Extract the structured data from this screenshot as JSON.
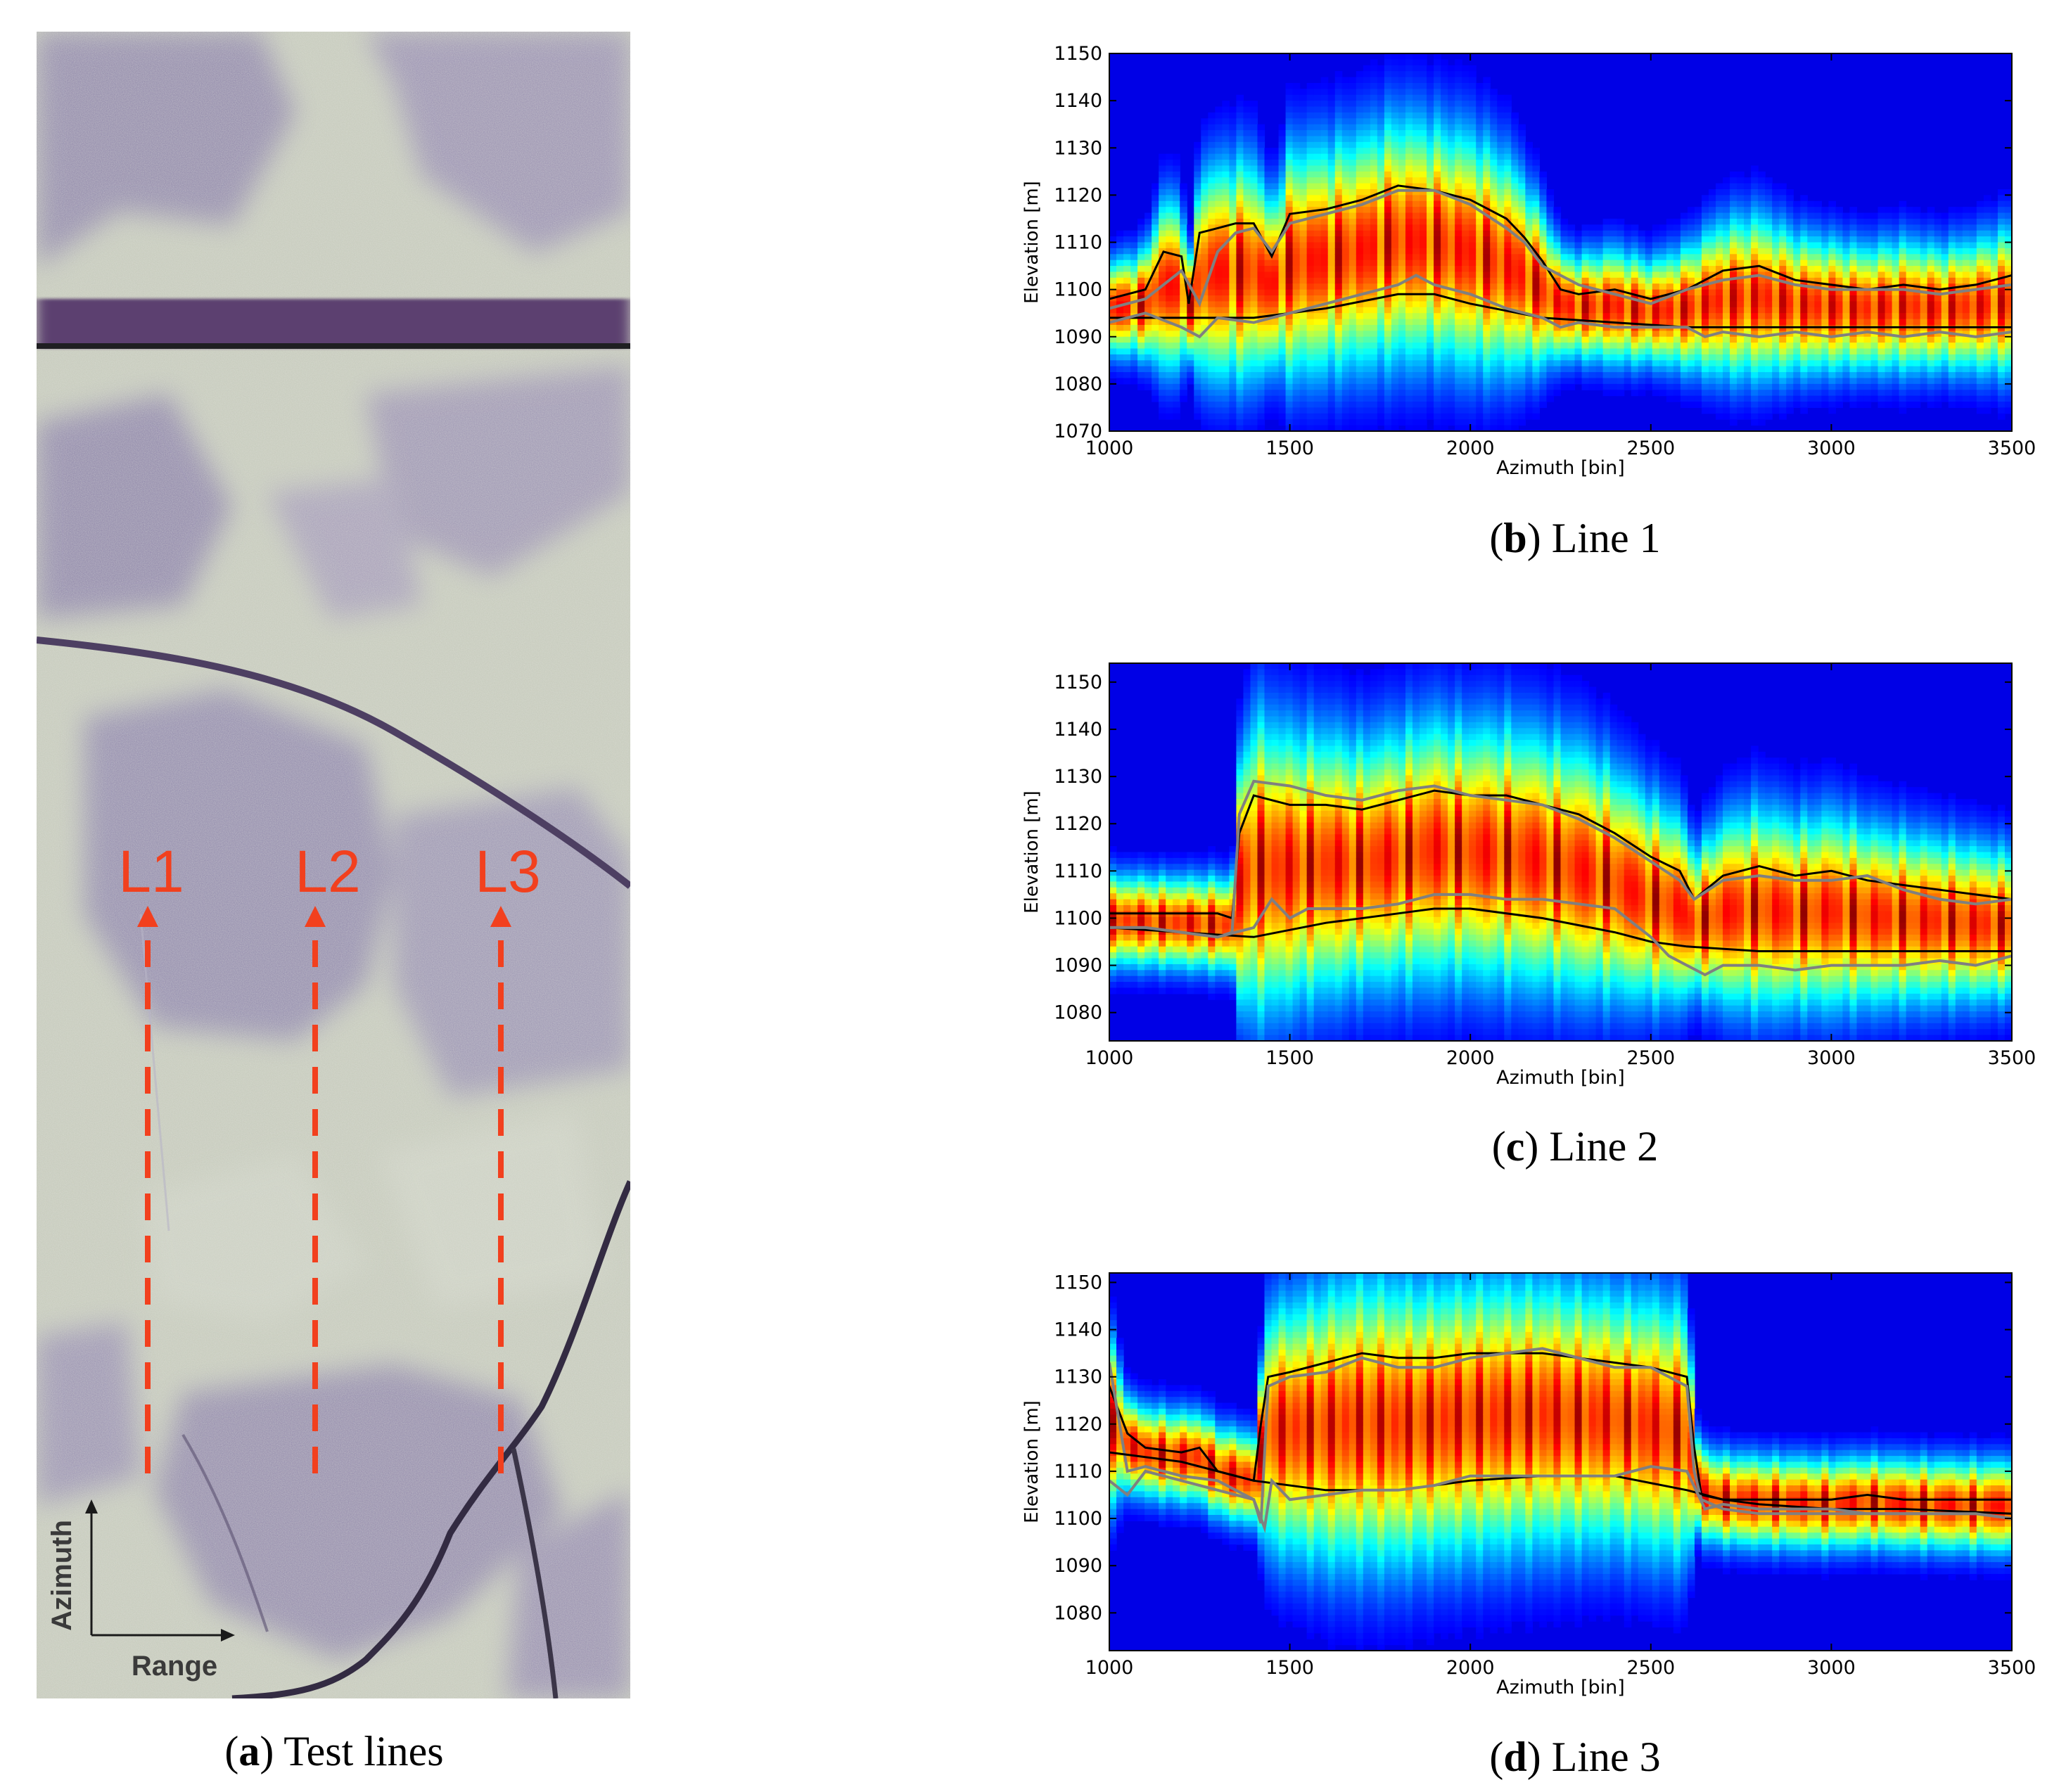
{
  "figure": {
    "panel_a": {
      "caption_letter": "a",
      "caption_text": "Test lines",
      "line_labels": [
        "L1",
        "L2",
        "L3"
      ],
      "compass": {
        "azimuth_label": "Azimuth",
        "range_label": "Range"
      },
      "colors": {
        "line": "#f2401e",
        "compass": "#1a1a1a"
      }
    },
    "panels": [
      {
        "caption_letter": "b",
        "caption_text": "Line 1"
      },
      {
        "caption_letter": "c",
        "caption_text": "Line 2"
      },
      {
        "caption_letter": "d",
        "caption_text": "Line 3"
      }
    ]
  },
  "chart_data": [
    {
      "type": "heatmap",
      "title": "",
      "xlabel": "Azimuth [bin]",
      "ylabel": "Elevation [m]",
      "xlim": [
        1000,
        3500
      ],
      "ylim": [
        1070,
        1150
      ],
      "xticks": [
        1000,
        1500,
        2000,
        2500,
        3000,
        3500
      ],
      "yticks": [
        1070,
        1080,
        1090,
        1100,
        1110,
        1120,
        1130,
        1140,
        1150
      ],
      "grid": false,
      "colormap": "jet",
      "series": [
        {
          "color": "#000000",
          "x": [
            1000,
            1100,
            1150,
            1200,
            1220,
            1250,
            1300,
            1350,
            1400,
            1450,
            1500,
            1600,
            1700,
            1800,
            1900,
            2000,
            2100,
            2150,
            2200,
            2250,
            2300,
            2400,
            2500,
            2600,
            2700,
            2800,
            2900,
            3000,
            3100,
            3200,
            3300,
            3400,
            3500
          ],
          "y": [
            1098,
            1100,
            1108,
            1107,
            1097,
            1112,
            1113,
            1114,
            1114,
            1107,
            1116,
            1117,
            1119,
            1122,
            1121,
            1119,
            1115,
            1111,
            1106,
            1100,
            1099,
            1100,
            1098,
            1100,
            1104,
            1105,
            1102,
            1101,
            1100,
            1101,
            1100,
            1101,
            1103
          ]
        },
        {
          "color": "#808080",
          "x": [
            1000,
            1100,
            1200,
            1250,
            1300,
            1350,
            1400,
            1450,
            1500,
            1600,
            1700,
            1800,
            1900,
            2000,
            2100,
            2150,
            2200,
            2250,
            2300,
            2400,
            2500,
            2600,
            2700,
            2800,
            2900,
            3000,
            3100,
            3200,
            3300,
            3400,
            3500
          ],
          "y": [
            1096,
            1098,
            1104,
            1097,
            1108,
            1112,
            1113,
            1108,
            1114,
            1116,
            1118,
            1121,
            1121,
            1118,
            1113,
            1110,
            1105,
            1103,
            1101,
            1099,
            1097,
            1100,
            1102,
            1103,
            1101,
            1100,
            1100,
            1100,
            1099,
            1100,
            1101
          ]
        },
        {
          "color": "#000000",
          "x": [
            1000,
            1200,
            1400,
            1600,
            1800,
            1900,
            2000,
            2200,
            2400,
            2600,
            2800,
            3000,
            3200,
            3500
          ],
          "y": [
            1094,
            1094,
            1094,
            1096,
            1099,
            1099,
            1097,
            1094,
            1093,
            1092,
            1092,
            1092,
            1092,
            1092
          ]
        },
        {
          "color": "#808080",
          "x": [
            1000,
            1100,
            1200,
            1250,
            1300,
            1400,
            1500,
            1600,
            1700,
            1800,
            1850,
            1900,
            1950,
            2000,
            2100,
            2200,
            2250,
            2300,
            2400,
            2500,
            2600,
            2650,
            2700,
            2800,
            2900,
            3000,
            3100,
            3200,
            3300,
            3400,
            3500
          ],
          "y": [
            1093,
            1095,
            1092,
            1090,
            1094,
            1093,
            1095,
            1097,
            1099,
            1101,
            1103,
            1101,
            1100,
            1099,
            1096,
            1094,
            1092,
            1093,
            1092,
            1092,
            1092,
            1090,
            1091,
            1090,
            1091,
            1090,
            1091,
            1090,
            1091,
            1090,
            1091
          ]
        }
      ]
    },
    {
      "type": "heatmap",
      "title": "",
      "xlabel": "Azimuth [bin]",
      "ylabel": "Elevation [m]",
      "xlim": [
        1000,
        3500
      ],
      "ylim": [
        1074,
        1154
      ],
      "xticks": [
        1000,
        1500,
        2000,
        2500,
        3000,
        3500
      ],
      "yticks": [
        1080,
        1090,
        1100,
        1110,
        1120,
        1130,
        1140,
        1150
      ],
      "grid": false,
      "colormap": "jet",
      "series": [
        {
          "color": "#000000",
          "x": [
            1000,
            1100,
            1200,
            1300,
            1340,
            1360,
            1400,
            1500,
            1600,
            1700,
            1800,
            1900,
            2000,
            2100,
            2200,
            2300,
            2400,
            2500,
            2580,
            2620,
            2700,
            2800,
            2900,
            3000,
            3100,
            3200,
            3300,
            3400,
            3500
          ],
          "y": [
            1101,
            1101,
            1101,
            1101,
            1100,
            1118,
            1126,
            1124,
            1124,
            1123,
            1125,
            1127,
            1126,
            1126,
            1124,
            1122,
            1118,
            1113,
            1110,
            1104,
            1109,
            1111,
            1109,
            1110,
            1108,
            1107,
            1106,
            1105,
            1104
          ]
        },
        {
          "color": "#808080",
          "x": [
            1000,
            1100,
            1200,
            1300,
            1340,
            1360,
            1400,
            1500,
            1600,
            1700,
            1800,
            1900,
            2000,
            2100,
            2200,
            2300,
            2400,
            2500,
            2580,
            2620,
            2700,
            2800,
            2900,
            3000,
            3100,
            3200,
            3300,
            3400,
            3500
          ],
          "y": [
            1098,
            1098,
            1097,
            1096,
            1097,
            1122,
            1129,
            1128,
            1126,
            1125,
            1127,
            1128,
            1126,
            1125,
            1124,
            1121,
            1117,
            1112,
            1108,
            1104,
            1108,
            1109,
            1108,
            1108,
            1109,
            1106,
            1104,
            1103,
            1104
          ]
        },
        {
          "color": "#000000",
          "x": [
            1000,
            1200,
            1400,
            1600,
            1800,
            1900,
            2000,
            2200,
            2400,
            2500,
            2600,
            2800,
            3000,
            3200,
            3500
          ],
          "y": [
            1098,
            1097,
            1096,
            1099,
            1101,
            1102,
            1102,
            1100,
            1097,
            1095,
            1094,
            1093,
            1093,
            1093,
            1093
          ]
        },
        {
          "color": "#808080",
          "x": [
            1000,
            1100,
            1200,
            1300,
            1400,
            1450,
            1500,
            1550,
            1600,
            1700,
            1800,
            1900,
            2000,
            2100,
            2200,
            2300,
            2400,
            2500,
            2550,
            2600,
            2650,
            2700,
            2800,
            2900,
            3000,
            3100,
            3200,
            3300,
            3400,
            3500
          ],
          "y": [
            1098,
            1098,
            1097,
            1096,
            1098,
            1104,
            1100,
            1102,
            1102,
            1102,
            1103,
            1105,
            1105,
            1104,
            1104,
            1103,
            1102,
            1096,
            1092,
            1090,
            1088,
            1090,
            1090,
            1089,
            1090,
            1090,
            1090,
            1091,
            1090,
            1092
          ]
        }
      ]
    },
    {
      "type": "heatmap",
      "title": "",
      "xlabel": "Azimuth [bin]",
      "ylabel": "Elevation [m]",
      "xlim": [
        1000,
        3500
      ],
      "ylim": [
        1072,
        1152
      ],
      "xticks": [
        1000,
        1500,
        2000,
        2500,
        3000,
        3500
      ],
      "yticks": [
        1080,
        1090,
        1100,
        1110,
        1120,
        1130,
        1140,
        1150
      ],
      "grid": false,
      "colormap": "jet",
      "series": [
        {
          "color": "#000000",
          "x": [
            1000,
            1050,
            1100,
            1200,
            1250,
            1300,
            1400,
            1420,
            1440,
            1500,
            1600,
            1700,
            1800,
            1900,
            2000,
            2100,
            2200,
            2300,
            2400,
            2500,
            2600,
            2620,
            2640,
            2700,
            2800,
            2900,
            3000,
            3100,
            3200,
            3300,
            3400,
            3500
          ],
          "y": [
            1128,
            1118,
            1115,
            1114,
            1115,
            1110,
            1108,
            1120,
            1130,
            1131,
            1133,
            1135,
            1134,
            1134,
            1135,
            1135,
            1135,
            1134,
            1133,
            1132,
            1130,
            1115,
            1105,
            1104,
            1104,
            1104,
            1104,
            1105,
            1104,
            1104,
            1104,
            1104
          ]
        },
        {
          "color": "#808080",
          "x": [
            1000,
            1050,
            1100,
            1200,
            1300,
            1400,
            1420,
            1440,
            1500,
            1600,
            1700,
            1800,
            1900,
            2000,
            2100,
            2200,
            2300,
            2400,
            2500,
            2600,
            2620,
            2640,
            2700,
            2800,
            2900,
            3000,
            3100,
            3200,
            3300,
            3400,
            3500
          ],
          "y": [
            1133,
            1110,
            1111,
            1109,
            1108,
            1104,
            1099,
            1128,
            1130,
            1131,
            1134,
            1132,
            1132,
            1134,
            1135,
            1136,
            1134,
            1132,
            1132,
            1128,
            1110,
            1104,
            1102,
            1101,
            1101,
            1101,
            1101,
            1101,
            1101,
            1101,
            1100
          ]
        },
        {
          "color": "#000000",
          "x": [
            1000,
            1200,
            1400,
            1600,
            1800,
            2000,
            2200,
            2400,
            2600,
            2700,
            2800,
            3000,
            3200,
            3500
          ],
          "y": [
            1114,
            1112,
            1108,
            1106,
            1106,
            1108,
            1109,
            1109,
            1106,
            1104,
            1103,
            1102,
            1102,
            1101
          ]
        },
        {
          "color": "#808080",
          "x": [
            1000,
            1050,
            1100,
            1200,
            1300,
            1400,
            1430,
            1450,
            1500,
            1600,
            1700,
            1800,
            1900,
            2000,
            2100,
            2200,
            2300,
            2400,
            2500,
            2600,
            2650,
            2700,
            2800,
            2900,
            3000,
            3100,
            3200,
            3300,
            3400,
            3500
          ],
          "y": [
            1108,
            1105,
            1110,
            1108,
            1106,
            1104,
            1098,
            1108,
            1104,
            1105,
            1106,
            1106,
            1107,
            1109,
            1109,
            1109,
            1109,
            1109,
            1111,
            1110,
            1102,
            1103,
            1102,
            1102,
            1102,
            1101,
            1101,
            1101,
            1101,
            1100
          ]
        }
      ]
    }
  ]
}
